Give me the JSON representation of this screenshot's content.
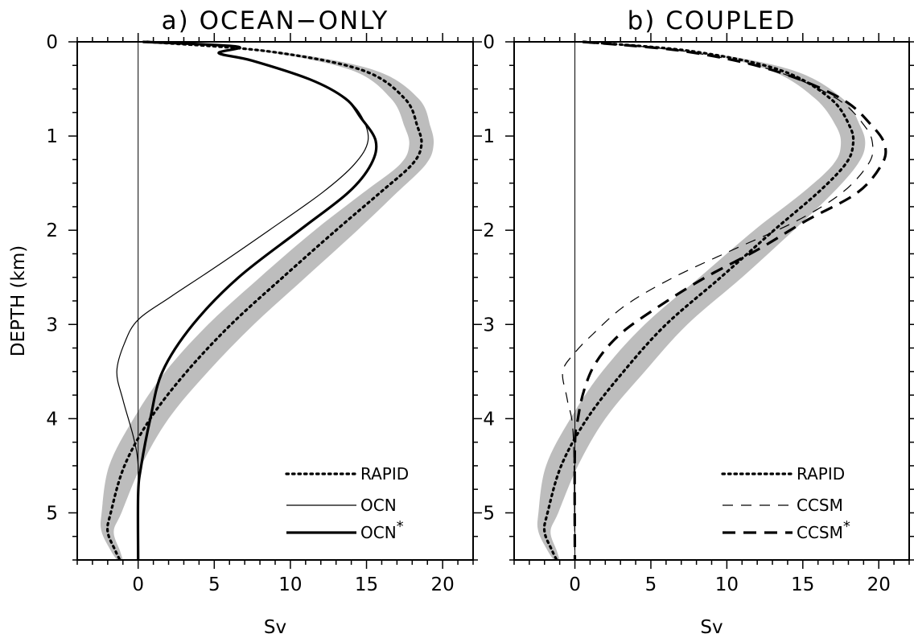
{
  "chart_data": [
    {
      "type": "line",
      "title": "a) OCEAN−ONLY",
      "xlabel": "Sv",
      "ylabel": "DEPTH (km)",
      "xlim": [
        -4,
        22
      ],
      "ylim": [
        5.5,
        0
      ],
      "xticks": [
        0,
        5,
        10,
        15,
        20
      ],
      "yticks": [
        0,
        1,
        2,
        3,
        4,
        5
      ],
      "grid": false,
      "legend_position": "bottom-right",
      "band": {
        "label": "",
        "color": "#bdbdbd",
        "points": [
          {
            "depth": 0.0,
            "lo": 0.5,
            "hi": 0.8
          },
          {
            "depth": 0.1,
            "lo": 8.0,
            "hi": 9.0
          },
          {
            "depth": 0.3,
            "lo": 14.0,
            "hi": 15.5
          },
          {
            "depth": 0.6,
            "lo": 16.6,
            "hi": 18.4
          },
          {
            "depth": 0.9,
            "lo": 17.5,
            "hi": 19.2
          },
          {
            "depth": 1.1,
            "lo": 17.8,
            "hi": 19.4
          },
          {
            "depth": 1.3,
            "lo": 17.2,
            "hi": 18.9
          },
          {
            "depth": 1.6,
            "lo": 14.8,
            "hi": 17.0
          },
          {
            "depth": 2.0,
            "lo": 11.6,
            "hi": 14.4
          },
          {
            "depth": 2.5,
            "lo": 8.0,
            "hi": 11.0
          },
          {
            "depth": 3.0,
            "lo": 4.6,
            "hi": 7.6
          },
          {
            "depth": 3.5,
            "lo": 1.8,
            "hi": 4.6
          },
          {
            "depth": 4.0,
            "lo": -0.3,
            "hi": 2.0
          },
          {
            "depth": 4.5,
            "lo": -1.9,
            "hi": 0.2
          },
          {
            "depth": 5.0,
            "lo": -2.4,
            "hi": -1.1
          },
          {
            "depth": 5.2,
            "lo": -2.4,
            "hi": -1.6
          },
          {
            "depth": 5.4,
            "lo": -1.8,
            "hi": -1.2
          },
          {
            "depth": 5.5,
            "lo": -1.4,
            "hi": -1.0
          }
        ]
      },
      "series": [
        {
          "name": "RAPID",
          "style": "dotted",
          "width": 3.2,
          "color": "#000000",
          "points": [
            {
              "depth": 0.0,
              "sv": 0.6
            },
            {
              "depth": 0.1,
              "sv": 8.5
            },
            {
              "depth": 0.3,
              "sv": 14.7
            },
            {
              "depth": 0.6,
              "sv": 17.5
            },
            {
              "depth": 0.9,
              "sv": 18.35
            },
            {
              "depth": 1.1,
              "sv": 18.6
            },
            {
              "depth": 1.3,
              "sv": 18.0
            },
            {
              "depth": 1.6,
              "sv": 15.9
            },
            {
              "depth": 2.0,
              "sv": 13.0
            },
            {
              "depth": 2.5,
              "sv": 9.5
            },
            {
              "depth": 3.0,
              "sv": 6.1
            },
            {
              "depth": 3.5,
              "sv": 3.2
            },
            {
              "depth": 4.0,
              "sv": 0.8
            },
            {
              "depth": 4.5,
              "sv": -0.9
            },
            {
              "depth": 5.0,
              "sv": -1.8
            },
            {
              "depth": 5.2,
              "sv": -2.0
            },
            {
              "depth": 5.4,
              "sv": -1.5
            },
            {
              "depth": 5.5,
              "sv": -1.2
            }
          ]
        },
        {
          "name": "OCN",
          "style": "solid",
          "width": 1.2,
          "color": "#000000",
          "points": [
            {
              "depth": 0.0,
              "sv": 0.3
            },
            {
              "depth": 0.05,
              "sv": 6.5
            },
            {
              "depth": 0.12,
              "sv": 5.3
            },
            {
              "depth": 0.2,
              "sv": 7.5
            },
            {
              "depth": 0.4,
              "sv": 11.3
            },
            {
              "depth": 0.6,
              "sv": 13.6
            },
            {
              "depth": 0.8,
              "sv": 14.7
            },
            {
              "depth": 1.05,
              "sv": 15.1
            },
            {
              "depth": 1.3,
              "sv": 14.2
            },
            {
              "depth": 1.6,
              "sv": 12.1
            },
            {
              "depth": 2.0,
              "sv": 8.6
            },
            {
              "depth": 2.4,
              "sv": 5.0
            },
            {
              "depth": 2.7,
              "sv": 2.2
            },
            {
              "depth": 2.95,
              "sv": 0.0
            },
            {
              "depth": 3.2,
              "sv": -0.9
            },
            {
              "depth": 3.5,
              "sv": -1.4
            },
            {
              "depth": 3.8,
              "sv": -1.0
            },
            {
              "depth": 4.2,
              "sv": -0.3
            },
            {
              "depth": 4.5,
              "sv": 0.0
            },
            {
              "depth": 5.0,
              "sv": 0.0
            },
            {
              "depth": 5.5,
              "sv": 0.0
            }
          ]
        },
        {
          "name": "OCN*",
          "style": "solid",
          "width": 3.2,
          "color": "#000000",
          "points": [
            {
              "depth": 0.0,
              "sv": 0.3
            },
            {
              "depth": 0.05,
              "sv": 6.5
            },
            {
              "depth": 0.12,
              "sv": 5.3
            },
            {
              "depth": 0.2,
              "sv": 7.5
            },
            {
              "depth": 0.4,
              "sv": 11.3
            },
            {
              "depth": 0.6,
              "sv": 13.6
            },
            {
              "depth": 0.8,
              "sv": 14.6
            },
            {
              "depth": 1.05,
              "sv": 15.6
            },
            {
              "depth": 1.3,
              "sv": 15.3
            },
            {
              "depth": 1.6,
              "sv": 13.8
            },
            {
              "depth": 2.0,
              "sv": 10.6
            },
            {
              "depth": 2.5,
              "sv": 6.6
            },
            {
              "depth": 3.0,
              "sv": 3.6
            },
            {
              "depth": 3.5,
              "sv": 1.6
            },
            {
              "depth": 4.0,
              "sv": 0.8
            },
            {
              "depth": 4.5,
              "sv": 0.2
            },
            {
              "depth": 4.8,
              "sv": 0.0
            },
            {
              "depth": 5.5,
              "sv": 0.0
            }
          ]
        }
      ],
      "legend": [
        {
          "label": "RAPID",
          "style": "dotted",
          "width": 3.2,
          "superscript": ""
        },
        {
          "label": "OCN",
          "style": "solid",
          "width": 1.2,
          "superscript": ""
        },
        {
          "label": "OCN",
          "style": "solid",
          "width": 3.2,
          "superscript": "*"
        }
      ]
    },
    {
      "type": "line",
      "title": "b) COUPLED",
      "xlabel": "Sv",
      "ylabel": "",
      "xlim": [
        -4,
        22
      ],
      "ylim": [
        5.5,
        0
      ],
      "xticks": [
        0,
        5,
        10,
        15,
        20
      ],
      "yticks": [
        0,
        1,
        2,
        3,
        4,
        5
      ],
      "grid": false,
      "legend_position": "bottom-right",
      "band": {
        "label": "",
        "color": "#bdbdbd",
        "points": [
          {
            "depth": 0.0,
            "lo": 0.5,
            "hi": 0.8
          },
          {
            "depth": 0.1,
            "lo": 7.4,
            "hi": 8.0
          },
          {
            "depth": 0.3,
            "lo": 12.8,
            "hi": 14.3
          },
          {
            "depth": 0.6,
            "lo": 15.8,
            "hi": 17.6
          },
          {
            "depth": 0.9,
            "lo": 17.2,
            "hi": 18.8
          },
          {
            "depth": 1.1,
            "lo": 17.5,
            "hi": 19.1
          },
          {
            "depth": 1.3,
            "lo": 17.0,
            "hi": 18.6
          },
          {
            "depth": 1.6,
            "lo": 15.0,
            "hi": 17.0
          },
          {
            "depth": 2.0,
            "lo": 11.8,
            "hi": 14.4
          },
          {
            "depth": 2.5,
            "lo": 8.2,
            "hi": 11.0
          },
          {
            "depth": 3.0,
            "lo": 4.6,
            "hi": 7.4
          },
          {
            "depth": 3.5,
            "lo": 1.8,
            "hi": 4.6
          },
          {
            "depth": 4.0,
            "lo": -0.3,
            "hi": 2.0
          },
          {
            "depth": 4.5,
            "lo": -1.9,
            "hi": 0.2
          },
          {
            "depth": 5.0,
            "lo": -2.4,
            "hi": -1.1
          },
          {
            "depth": 5.2,
            "lo": -2.4,
            "hi": -1.6
          },
          {
            "depth": 5.4,
            "lo": -1.8,
            "hi": -1.2
          },
          {
            "depth": 5.5,
            "lo": -1.4,
            "hi": -1.0
          }
        ]
      },
      "series": [
        {
          "name": "RAPID",
          "style": "dotted",
          "width": 3.2,
          "color": "#000000",
          "points": [
            {
              "depth": 0.0,
              "sv": 0.6
            },
            {
              "depth": 0.1,
              "sv": 7.7
            },
            {
              "depth": 0.3,
              "sv": 13.5
            },
            {
              "depth": 0.6,
              "sv": 16.8
            },
            {
              "depth": 0.9,
              "sv": 18.1
            },
            {
              "depth": 1.1,
              "sv": 18.3
            },
            {
              "depth": 1.3,
              "sv": 17.8
            },
            {
              "depth": 1.6,
              "sv": 16.0
            },
            {
              "depth": 2.0,
              "sv": 13.1
            },
            {
              "depth": 2.5,
              "sv": 9.6
            },
            {
              "depth": 3.0,
              "sv": 6.0
            },
            {
              "depth": 3.5,
              "sv": 3.2
            },
            {
              "depth": 4.0,
              "sv": 0.8
            },
            {
              "depth": 4.5,
              "sv": -0.9
            },
            {
              "depth": 5.0,
              "sv": -1.8
            },
            {
              "depth": 5.2,
              "sv": -2.0
            },
            {
              "depth": 5.4,
              "sv": -1.5
            },
            {
              "depth": 5.5,
              "sv": -1.2
            }
          ]
        },
        {
          "name": "CCSM",
          "style": "dashed",
          "width": 1.2,
          "color": "#000000",
          "points": [
            {
              "depth": 0.0,
              "sv": 0.5
            },
            {
              "depth": 0.1,
              "sv": 7.2
            },
            {
              "depth": 0.3,
              "sv": 13.0
            },
            {
              "depth": 0.6,
              "sv": 17.2
            },
            {
              "depth": 0.9,
              "sv": 19.1
            },
            {
              "depth": 1.1,
              "sv": 19.6
            },
            {
              "depth": 1.3,
              "sv": 19.3
            },
            {
              "depth": 1.6,
              "sv": 17.6
            },
            {
              "depth": 1.9,
              "sv": 14.6
            },
            {
              "depth": 2.2,
              "sv": 10.5
            },
            {
              "depth": 2.5,
              "sv": 6.5
            },
            {
              "depth": 2.8,
              "sv": 3.3
            },
            {
              "depth": 3.1,
              "sv": 1.2
            },
            {
              "depth": 3.3,
              "sv": 0.0
            },
            {
              "depth": 3.5,
              "sv": -0.8
            },
            {
              "depth": 3.8,
              "sv": -0.5
            },
            {
              "depth": 4.2,
              "sv": -0.1
            },
            {
              "depth": 5.5,
              "sv": 0.0
            }
          ]
        },
        {
          "name": "CCSM*",
          "style": "dashed",
          "width": 3.2,
          "color": "#000000",
          "points": [
            {
              "depth": 0.0,
              "sv": 0.5
            },
            {
              "depth": 0.1,
              "sv": 7.2
            },
            {
              "depth": 0.3,
              "sv": 13.0
            },
            {
              "depth": 0.6,
              "sv": 17.5
            },
            {
              "depth": 0.9,
              "sv": 19.6
            },
            {
              "depth": 1.1,
              "sv": 20.4
            },
            {
              "depth": 1.3,
              "sv": 20.2
            },
            {
              "depth": 1.6,
              "sv": 18.6
            },
            {
              "depth": 1.9,
              "sv": 15.2
            },
            {
              "depth": 2.2,
              "sv": 12.1
            },
            {
              "depth": 2.5,
              "sv": 8.6
            },
            {
              "depth": 2.8,
              "sv": 5.6
            },
            {
              "depth": 3.1,
              "sv": 3.0
            },
            {
              "depth": 3.4,
              "sv": 1.4
            },
            {
              "depth": 3.7,
              "sv": 0.6
            },
            {
              "depth": 4.0,
              "sv": 0.2
            },
            {
              "depth": 4.3,
              "sv": 0.0
            },
            {
              "depth": 5.5,
              "sv": 0.0
            }
          ]
        }
      ],
      "legend": [
        {
          "label": "RAPID",
          "style": "dotted",
          "width": 3.2,
          "superscript": ""
        },
        {
          "label": "CCSM",
          "style": "dashed",
          "width": 1.2,
          "superscript": ""
        },
        {
          "label": "CCSM",
          "style": "dashed",
          "width": 3.2,
          "superscript": "*"
        }
      ]
    }
  ]
}
